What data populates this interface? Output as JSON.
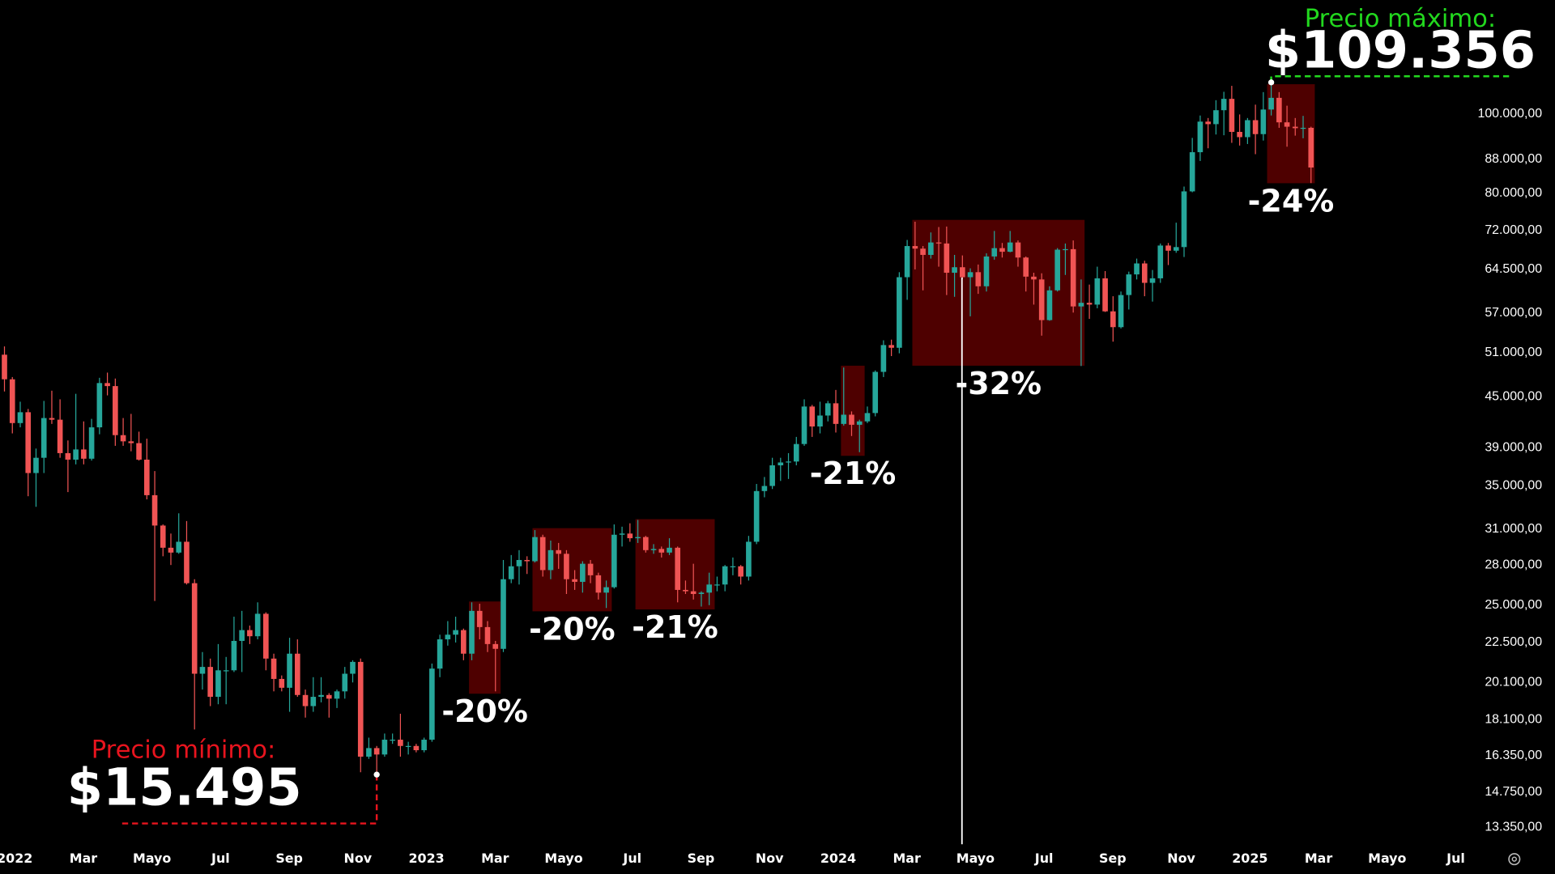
{
  "chart_data": {
    "type": "candlestick",
    "log_scale": true,
    "grid": false,
    "up_color": "#26a69a",
    "down_color": "#f05454",
    "box_color": "#560000",
    "xlim": [
      -0.43,
      43.07
    ],
    "ylim": [
      12800,
      138000
    ],
    "xticks": [
      {
        "value": 0,
        "label": "2022"
      },
      {
        "value": 2,
        "label": "Mar"
      },
      {
        "value": 4,
        "label": "Mayo"
      },
      {
        "value": 6,
        "label": "Jul"
      },
      {
        "value": 8,
        "label": "Sep"
      },
      {
        "value": 10,
        "label": "Nov"
      },
      {
        "value": 12,
        "label": "2023"
      },
      {
        "value": 14,
        "label": "Mar"
      },
      {
        "value": 16,
        "label": "Mayo"
      },
      {
        "value": 18,
        "label": "Jul"
      },
      {
        "value": 20,
        "label": "Sep"
      },
      {
        "value": 22,
        "label": "Nov"
      },
      {
        "value": 24,
        "label": "2024"
      },
      {
        "value": 26,
        "label": "Mar"
      },
      {
        "value": 28,
        "label": "Mayo"
      },
      {
        "value": 30,
        "label": "Jul"
      },
      {
        "value": 32,
        "label": "Sep"
      },
      {
        "value": 34,
        "label": "Nov"
      },
      {
        "value": 36,
        "label": "2025"
      },
      {
        "value": 38,
        "label": "Mar"
      },
      {
        "value": 40,
        "label": "Mayo"
      },
      {
        "value": 42,
        "label": "Jul"
      }
    ],
    "yticks": [
      {
        "value": 100000,
        "label": "100.000,00"
      },
      {
        "value": 88000,
        "label": "88.000,00"
      },
      {
        "value": 80000,
        "label": "80.000,00"
      },
      {
        "value": 72000,
        "label": "72.000,00"
      },
      {
        "value": 64500,
        "label": "64.500,00"
      },
      {
        "value": 57000,
        "label": "57.000,00"
      },
      {
        "value": 51000,
        "label": "51.000,00"
      },
      {
        "value": 45000,
        "label": "45.000,00"
      },
      {
        "value": 39000,
        "label": "39.000,00"
      },
      {
        "value": 35000,
        "label": "35.000,00"
      },
      {
        "value": 31000,
        "label": "31.000,00"
      },
      {
        "value": 28000,
        "label": "28.000,00"
      },
      {
        "value": 25000,
        "label": "25.000,00"
      },
      {
        "value": 22500,
        "label": "22.500,00"
      },
      {
        "value": 20100,
        "label": "20.100,00"
      },
      {
        "value": 18100,
        "label": "18.100,00"
      },
      {
        "value": 16350,
        "label": "16.350,00"
      },
      {
        "value": 14750,
        "label": "14.750,00"
      },
      {
        "value": 13350,
        "label": "13.350,00"
      }
    ],
    "x": [
      -0.3,
      -0.07,
      0.16,
      0.39,
      0.62,
      0.85,
      1.08,
      1.32,
      1.55,
      1.78,
      2.01,
      2.24,
      2.47,
      2.7,
      2.93,
      3.16,
      3.39,
      3.62,
      3.85,
      4.08,
      4.32,
      4.55,
      4.78,
      5.01,
      5.24,
      5.47,
      5.7,
      5.93,
      6.16,
      6.39,
      6.62,
      6.85,
      7.08,
      7.32,
      7.55,
      7.78,
      8.01,
      8.24,
      8.47,
      8.7,
      8.93,
      9.16,
      9.39,
      9.62,
      9.85,
      10.08,
      10.32,
      10.55,
      10.78,
      11.01,
      11.24,
      11.47,
      11.7,
      11.93,
      12.16,
      12.39,
      12.62,
      12.85,
      13.08,
      13.32,
      13.55,
      13.78,
      14.01,
      14.24,
      14.47,
      14.7,
      14.93,
      15.16,
      15.39,
      15.62,
      15.85,
      16.08,
      16.32,
      16.55,
      16.78,
      17.01,
      17.24,
      17.47,
      17.7,
      17.93,
      18.16,
      18.39,
      18.62,
      18.85,
      19.08,
      19.32,
      19.55,
      19.78,
      20.01,
      20.24,
      20.47,
      20.7,
      20.93,
      21.16,
      21.39,
      21.62,
      21.85,
      22.08,
      22.32,
      22.55,
      22.78,
      23.01,
      23.24,
      23.47,
      23.7,
      23.93,
      24.16,
      24.39,
      24.62,
      24.85,
      25.08,
      25.32,
      25.55,
      25.78,
      26.01,
      26.24,
      26.47,
      26.7,
      26.93,
      27.16,
      27.39,
      27.62,
      27.85,
      28.08,
      28.32,
      28.55,
      28.78,
      29.01,
      29.24,
      29.47,
      29.7,
      29.93,
      30.16,
      30.39,
      30.62,
      30.85,
      31.08,
      31.32,
      31.55,
      31.78,
      32.01,
      32.24,
      32.47,
      32.7,
      32.93,
      33.16,
      33.39,
      33.62,
      33.85,
      34.08,
      34.32,
      34.55,
      34.78,
      35.01,
      35.24,
      35.47,
      35.7,
      35.93,
      36.16,
      36.39,
      36.62,
      36.85,
      37.08,
      37.32,
      37.55,
      37.78
    ],
    "open": [
      50700,
      47300,
      41800,
      43100,
      36300,
      37900,
      42400,
      42200,
      38400,
      37700,
      38800,
      37800,
      41300,
      46800,
      46400,
      40400,
      39700,
      39500,
      37700,
      34100,
      31300,
      29400,
      29000,
      29900,
      26600,
      20600,
      21000,
      19300,
      20800,
      20800,
      22600,
      23300,
      22900,
      24400,
      21500,
      20300,
      19800,
      21800,
      19400,
      18800,
      19300,
      19400,
      19200,
      19600,
      20600,
      21300,
      16300,
      16700,
      16400,
      17100,
      17100,
      16800,
      16800,
      16600,
      17100,
      20900,
      22700,
      23000,
      23300,
      21800,
      24600,
      23500,
      22400,
      22100,
      26900,
      27900,
      28400,
      28300,
      30300,
      27600,
      29200,
      28900,
      26900,
      26700,
      28100,
      27200,
      25900,
      26300,
      30500,
      30600,
      30200,
      30300,
      29200,
      29300,
      29000,
      29400,
      26100,
      26000,
      25800,
      25900,
      26500,
      26500,
      27900,
      27900,
      27100,
      29900,
      34500,
      35000,
      37100,
      37400,
      37500,
      39400,
      43800,
      41400,
      42700,
      44200,
      41700,
      42800,
      41600,
      42000,
      43000,
      48300,
      52100,
      51700,
      63100,
      68900,
      68400,
      67200,
      69600,
      69400,
      63900,
      64900,
      63100,
      64000,
      61500,
      66900,
      68500,
      67800,
      69600,
      66700,
      63200,
      62700,
      55900,
      60800,
      68200,
      68300,
      58100,
      58700,
      58400,
      62900,
      57300,
      54800,
      60000,
      63600,
      65600,
      62100,
      62900,
      69000,
      68000,
      68700,
      80400,
      89800,
      97900,
      97200,
      101100,
      104400,
      95100,
      93700,
      98300,
      94500,
      101300,
      104700,
      97700,
      96500,
      96100,
      96200
    ],
    "high": [
      51900,
      47600,
      44400,
      43500,
      38900,
      44500,
      45800,
      44700,
      39800,
      45400,
      42000,
      42300,
      47500,
      48200,
      47400,
      42400,
      42900,
      40800,
      40000,
      36500,
      31400,
      30600,
      32400,
      31700,
      26900,
      21900,
      21500,
      22400,
      21600,
      24200,
      24600,
      23600,
      25200,
      24500,
      21800,
      20500,
      22800,
      22700,
      19700,
      20400,
      20400,
      19500,
      19700,
      21000,
      21400,
      21500,
      17200,
      16800,
      17400,
      17400,
      18400,
      17000,
      16900,
      17200,
      21200,
      23000,
      23900,
      24200,
      23400,
      25200,
      25100,
      23900,
      22600,
      28400,
      28800,
      29200,
      28700,
      30900,
      30500,
      30000,
      29800,
      29200,
      27600,
      28300,
      28400,
      27400,
      26800,
      31400,
      31200,
      31500,
      31800,
      30400,
      29700,
      29500,
      30200,
      29500,
      26800,
      28100,
      26000,
      27400,
      27100,
      28000,
      28600,
      28000,
      30400,
      35200,
      35900,
      37900,
      37900,
      38400,
      40200,
      44700,
      44000,
      44400,
      44500,
      45900,
      48900,
      43200,
      42200,
      43800,
      48500,
      52800,
      52900,
      64000,
      70100,
      73800,
      68900,
      71600,
      72700,
      72800,
      67200,
      67100,
      64700,
      65400,
      67500,
      71900,
      69500,
      71900,
      70000,
      66900,
      63900,
      63800,
      61500,
      68500,
      69400,
      70000,
      62700,
      61800,
      65000,
      64200,
      59800,
      60600,
      64100,
      66500,
      66100,
      64400,
      69400,
      69500,
      73600,
      81500,
      93500,
      99600,
      98900,
      104000,
      106500,
      108300,
      99900,
      98900,
      102700,
      106400,
      109356,
      106400,
      102400,
      98900,
      99500,
      96500
    ],
    "low": [
      45700,
      40600,
      41300,
      34000,
      33000,
      36300,
      41700,
      37900,
      34400,
      37200,
      37200,
      37600,
      40500,
      45200,
      39200,
      39200,
      38600,
      37600,
      33700,
      25300,
      28700,
      28000,
      28900,
      26500,
      17600,
      19700,
      18800,
      18900,
      18900,
      20700,
      20700,
      22400,
      22700,
      20800,
      19600,
      19600,
      18500,
      19300,
      18200,
      18500,
      19000,
      18200,
      18700,
      19200,
      20100,
      15600,
      16200,
      15495,
      16300,
      16900,
      16300,
      16400,
      16500,
      16500,
      17000,
      20400,
      22300,
      22500,
      21400,
      21400,
      22700,
      21900,
      19600,
      21900,
      26600,
      26500,
      27300,
      28200,
      27100,
      26900,
      27700,
      25800,
      26100,
      25900,
      26600,
      25400,
      24800,
      26200,
      29500,
      29900,
      29800,
      29000,
      28900,
      28600,
      28800,
      25200,
      25800,
      25400,
      24900,
      25000,
      26000,
      26000,
      27200,
      26500,
      26800,
      29700,
      33900,
      34700,
      35500,
      35700,
      37100,
      39200,
      40200,
      40600,
      42000,
      40700,
      41500,
      40300,
      38500,
      41800,
      42600,
      47600,
      50500,
      50900,
      59200,
      64500,
      60800,
      66500,
      65000,
      60000,
      59700,
      62800,
      56500,
      60200,
      60600,
      66300,
      66700,
      67700,
      65000,
      60600,
      58400,
      53500,
      55800,
      60600,
      63500,
      57100,
      49100,
      56100,
      57800,
      57200,
      52600,
      54600,
      57600,
      62700,
      59800,
      58900,
      62100,
      65300,
      67600,
      66800,
      80200,
      87600,
      90800,
      94400,
      94200,
      92200,
      91500,
      91900,
      89300,
      92800,
      99600,
      96200,
      91200,
      94100,
      93400,
      82300
    ],
    "close": [
      47300,
      41800,
      43100,
      36300,
      37900,
      42400,
      42200,
      38400,
      37700,
      38800,
      37800,
      41300,
      46800,
      46400,
      40400,
      39700,
      39500,
      37700,
      34100,
      31300,
      29400,
      29000,
      29900,
      26600,
      20600,
      21000,
      19300,
      20800,
      20800,
      22600,
      23300,
      22900,
      24400,
      21500,
      20300,
      19800,
      21800,
      19400,
      18800,
      19300,
      19400,
      19200,
      19600,
      20600,
      21300,
      16300,
      16700,
      16400,
      17100,
      17100,
      16800,
      16800,
      16600,
      17100,
      20900,
      22700,
      23000,
      23300,
      21800,
      24600,
      23500,
      22400,
      22100,
      26900,
      27900,
      28400,
      28300,
      30300,
      27600,
      29200,
      28900,
      26900,
      26700,
      28100,
      27200,
      25900,
      26300,
      30500,
      30600,
      30200,
      30300,
      29200,
      29300,
      29000,
      29400,
      26100,
      26000,
      25800,
      25900,
      26500,
      26500,
      27900,
      27900,
      27100,
      29900,
      34500,
      35000,
      37100,
      37400,
      37500,
      39400,
      43800,
      41400,
      42700,
      44200,
      41700,
      42800,
      41600,
      42000,
      43000,
      48300,
      52100,
      51700,
      63100,
      68900,
      68400,
      67200,
      69600,
      69400,
      63900,
      64900,
      63100,
      64000,
      61500,
      66900,
      68500,
      67800,
      69600,
      66700,
      63200,
      62700,
      55900,
      60800,
      68200,
      68300,
      58100,
      58700,
      58400,
      62900,
      57300,
      54800,
      60000,
      63600,
      65600,
      62100,
      62900,
      69000,
      68000,
      68700,
      80400,
      89800,
      97900,
      97200,
      101100,
      104400,
      95100,
      93700,
      98300,
      94500,
      101300,
      104700,
      97700,
      96500,
      96100,
      96200,
      86000
    ],
    "annotations": [
      {
        "label": "-20%",
        "x": [
          13.24,
          14.16
        ],
        "y": [
          25260,
          19470
        ]
      },
      {
        "label": "-20%",
        "x": [
          15.09,
          17.4
        ],
        "y": [
          31070,
          24570
        ]
      },
      {
        "label": "-21%",
        "x": [
          18.09,
          20.4
        ],
        "y": [
          31870,
          24700
        ]
      },
      {
        "label": "-21%",
        "x": [
          24.08,
          24.77
        ],
        "y": [
          49150,
          38110
        ]
      },
      {
        "label": "-32%",
        "x": [
          26.16,
          31.18
        ],
        "y": [
          74180,
          49150
        ]
      },
      {
        "label": "-24%",
        "x": [
          36.5,
          37.89
        ],
        "y": [
          108800,
          82270
        ]
      }
    ],
    "extremes": {
      "min": {
        "title": "Precio mínimo:",
        "value": 15495,
        "value_label": "$15.495",
        "x": 10.55,
        "color": "#e8141e"
      },
      "max": {
        "title": "Precio máximo:",
        "value": 109356,
        "value_label": "$109.356",
        "x": 36.62,
        "color": "#22d81e"
      }
    }
  }
}
